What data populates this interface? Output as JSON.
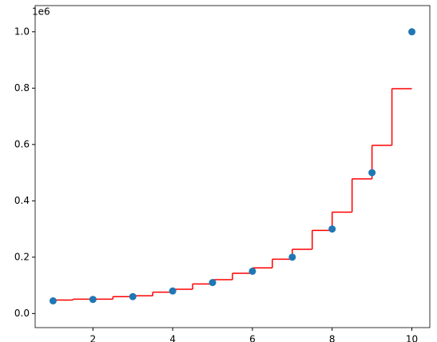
{
  "chart_data": {
    "type": "scatter-step",
    "y_offset_label": "1e6",
    "xlim": [
      0.55,
      10.45
    ],
    "ylim": [
      -50000,
      1093000
    ],
    "xticks": [
      2,
      4,
      6,
      8,
      10
    ],
    "yticks": [
      {
        "value": 0,
        "label": "0.0"
      },
      {
        "value": 200000,
        "label": "0.2"
      },
      {
        "value": 400000,
        "label": "0.4"
      },
      {
        "value": 600000,
        "label": "0.6"
      },
      {
        "value": 800000,
        "label": "0.8"
      },
      {
        "value": 1000000,
        "label": "1.0"
      }
    ],
    "series": [
      {
        "type": "scatter",
        "color": "#1f77b4",
        "x": [
          1,
          2,
          3,
          4,
          5,
          6,
          7,
          8,
          9,
          10
        ],
        "values": [
          45000,
          50000,
          60000,
          80000,
          110000,
          150000,
          200000,
          300000,
          500000,
          1000000
        ]
      },
      {
        "type": "step",
        "color": "#ff0000",
        "x": [
          1,
          1.5,
          2,
          2.5,
          3,
          3.5,
          4,
          4.5,
          5,
          5.5,
          6,
          6.5,
          7,
          7.5,
          8,
          8.5,
          9,
          9.5,
          10
        ],
        "values": [
          48000,
          51000,
          51000,
          60000,
          63000,
          76000,
          86000,
          105000,
          120000,
          143000,
          162000,
          193000,
          228000,
          295000,
          360000,
          478000,
          597000,
          798000,
          798000
        ]
      }
    ]
  }
}
